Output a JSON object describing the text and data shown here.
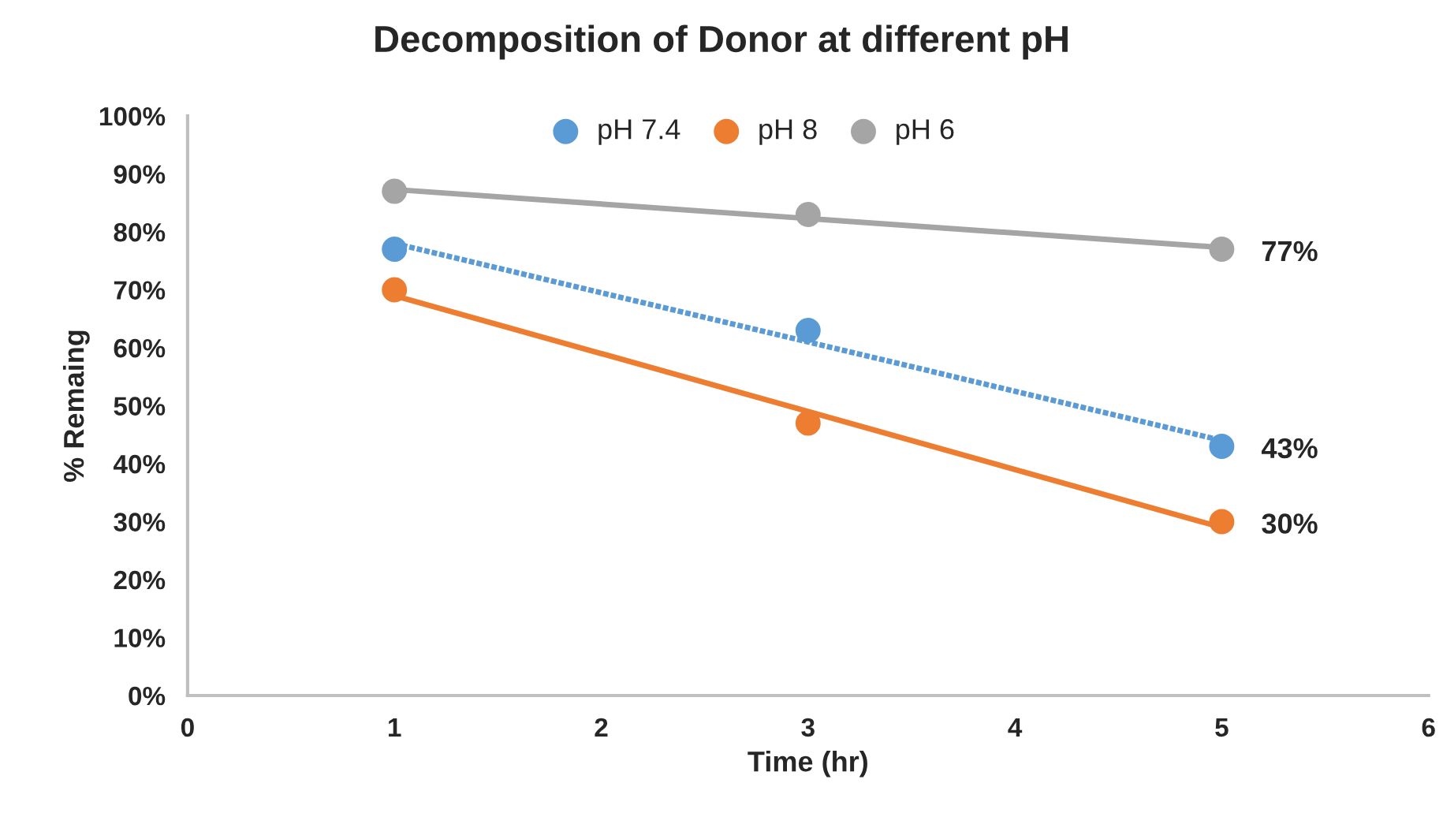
{
  "chart_data": {
    "type": "scatter",
    "title": "Decomposition of Donor at different pH",
    "xlabel": "Time (hr)",
    "ylabel": "% Remaing",
    "xlim": [
      0,
      6
    ],
    "xticks": [
      0,
      1,
      2,
      3,
      4,
      5,
      6
    ],
    "ylim": [
      0,
      100
    ],
    "yticks": [
      {
        "value": 0,
        "label": "0%"
      },
      {
        "value": 10,
        "label": "10%"
      },
      {
        "value": 20,
        "label": "20%"
      },
      {
        "value": 30,
        "label": "30%"
      },
      {
        "value": 40,
        "label": "40%"
      },
      {
        "value": 50,
        "label": "50%"
      },
      {
        "value": 60,
        "label": "60%"
      },
      {
        "value": 70,
        "label": "70%"
      },
      {
        "value": 80,
        "label": "80%"
      },
      {
        "value": 90,
        "label": "90%"
      },
      {
        "value": 100,
        "label": "100%"
      }
    ],
    "grid": false,
    "legend": "top",
    "series": [
      {
        "name": "pH 7.4",
        "color": "#5b9bd5",
        "x": [
          1,
          3,
          5
        ],
        "values": [
          77,
          63,
          43
        ],
        "value_labels": [
          null,
          null,
          "43%"
        ],
        "marker": "circle"
      },
      {
        "name": "pH 8",
        "color": "#ed7d31",
        "x": [
          1,
          3,
          5
        ],
        "values": [
          70,
          47,
          30
        ],
        "value_labels": [
          null,
          null,
          "30%"
        ],
        "marker": "circle"
      },
      {
        "name": "pH 6",
        "color": "#a5a5a5",
        "x": [
          1,
          3,
          5
        ],
        "values": [
          87,
          83,
          77
        ],
        "value_labels": [
          null,
          null,
          "77%"
        ],
        "marker": "circle"
      },
      {
        "type": "line",
        "color": "#5b9bd5",
        "x": [
          1,
          5
        ],
        "values": [
          78,
          44
        ],
        "line_style": "dotted",
        "marker": "none"
      },
      {
        "type": "line",
        "color": "#ed7d31",
        "x": [
          1,
          5
        ],
        "values": [
          69,
          29
        ],
        "marker": "none"
      },
      {
        "type": "line",
        "color": "#a5a5a5",
        "x": [
          1,
          5
        ],
        "values": [
          87.3,
          77.3
        ],
        "marker": "none"
      }
    ]
  }
}
